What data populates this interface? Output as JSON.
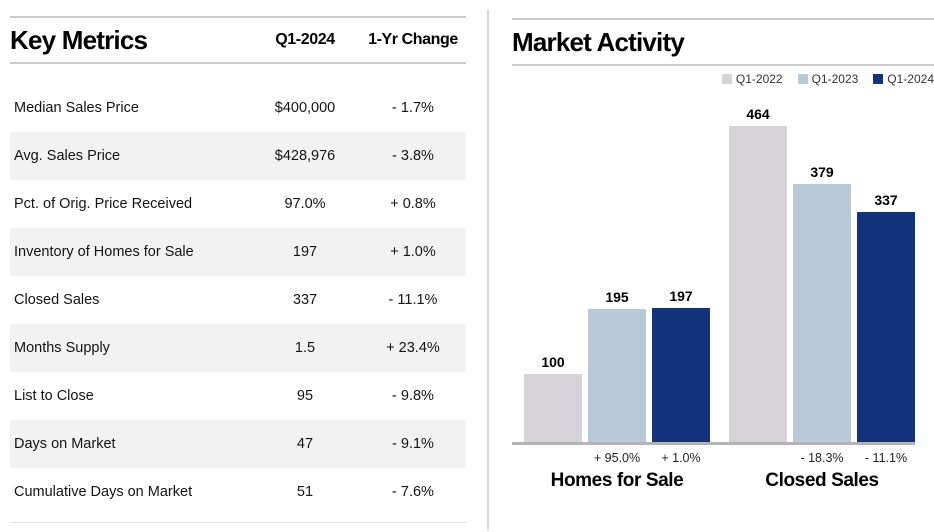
{
  "chart_data": [
    {
      "type": "table",
      "title": "Key Metrics",
      "columns": [
        "Q1-2024",
        "1-Yr Change"
      ],
      "rows": [
        [
          "Median Sales Price",
          "$400,000",
          "- 1.7%"
        ],
        [
          "Avg. Sales Price",
          "$428,976",
          "- 3.8%"
        ],
        [
          "Pct. of Orig. Price Received",
          "97.0%",
          "+ 0.8%"
        ],
        [
          "Inventory of Homes for Sale",
          "197",
          "+ 1.0%"
        ],
        [
          "Closed Sales",
          "337",
          "- 11.1%"
        ],
        [
          "Months Supply",
          "1.5",
          "+ 23.4%"
        ],
        [
          "List to Close",
          "95",
          "- 9.8%"
        ],
        [
          "Days on Market",
          "47",
          "- 9.1%"
        ],
        [
          "Cumulative Days on Market",
          "51",
          "- 7.6%"
        ]
      ]
    },
    {
      "type": "bar",
      "title": "Market Activity",
      "categories": [
        "Homes for Sale",
        "Closed Sales"
      ],
      "series": [
        {
          "name": "Q1-2022",
          "values": [
            100,
            464
          ],
          "color": "#d6d3d8"
        },
        {
          "name": "Q1-2023",
          "values": [
            195,
            379
          ],
          "color": "#b8c9d8"
        },
        {
          "name": "Q1-2024",
          "values": [
            197,
            337
          ],
          "color": "#13347d"
        }
      ],
      "bar_value_labels": true,
      "pct_change_labels": [
        [
          "",
          "+ 95.0%",
          "+ 1.0%"
        ],
        [
          "",
          "- 18.3%",
          "- 11.1%"
        ]
      ],
      "legend_position": "top-right",
      "ylim": [
        0,
        500
      ],
      "grid": false
    }
  ],
  "colors": {
    "q1_2022_bar": "#d6d3d8",
    "q1_2023_bar": "#b8c9d8",
    "q1_2024_bar": "#13347d",
    "row_alt_bg": "#f2f2f2",
    "header_rule": "#cbcbcb",
    "axis_line": "#b4b1b7",
    "panel_divider": "#d8d8d8"
  }
}
